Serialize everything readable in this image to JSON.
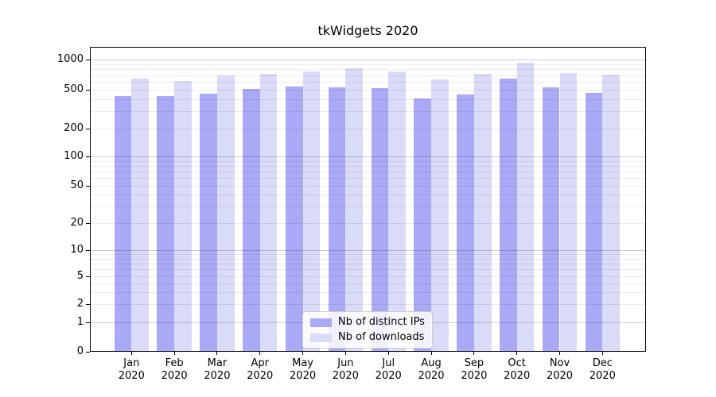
{
  "title": "tkWidgets 2020",
  "chart_data": {
    "type": "bar",
    "title": "tkWidgets 2020",
    "yscale": "symlog",
    "ylim": [
      0,
      1340
    ],
    "grid": true,
    "legend_position": "lower center",
    "y_ticks": [
      0,
      1,
      2,
      5,
      10,
      20,
      50,
      100,
      200,
      500,
      1000
    ],
    "categories": [
      "Jan 2020",
      "Feb 2020",
      "Mar 2020",
      "Apr 2020",
      "May 2020",
      "Jun 2020",
      "Jul 2020",
      "Aug 2020",
      "Sep 2020",
      "Oct 2020",
      "Nov 2020",
      "Dec 2020"
    ],
    "category_lines": [
      {
        "month": "Jan",
        "year": "2020"
      },
      {
        "month": "Feb",
        "year": "2020"
      },
      {
        "month": "Mar",
        "year": "2020"
      },
      {
        "month": "Apr",
        "year": "2020"
      },
      {
        "month": "May",
        "year": "2020"
      },
      {
        "month": "Jun",
        "year": "2020"
      },
      {
        "month": "Jul",
        "year": "2020"
      },
      {
        "month": "Aug",
        "year": "2020"
      },
      {
        "month": "Sep",
        "year": "2020"
      },
      {
        "month": "Oct",
        "year": "2020"
      },
      {
        "month": "Nov",
        "year": "2020"
      },
      {
        "month": "Dec",
        "year": "2020"
      }
    ],
    "series": [
      {
        "name": "Nb of distinct IPs",
        "color": "#a9a9f6",
        "values": [
          430,
          428,
          455,
          505,
          535,
          525,
          515,
          410,
          450,
          645,
          530,
          460
        ]
      },
      {
        "name": "Nb of downloads",
        "color": "#dadaf9",
        "values": [
          645,
          612,
          695,
          720,
          760,
          820,
          760,
          635,
          725,
          925,
          730,
          710
        ]
      }
    ]
  },
  "colors": {
    "background": "#ffffff",
    "spine": "#000000",
    "grid_minor": "#ededed",
    "grid_major": "#cfcfcf",
    "series_dark": "#a9a9f6",
    "series_light": "#dadaf9"
  }
}
